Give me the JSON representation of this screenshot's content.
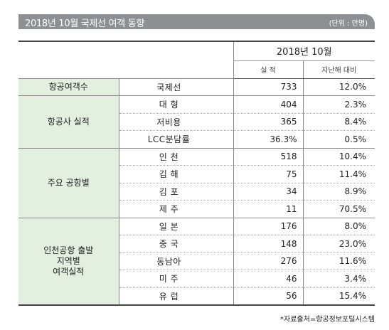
{
  "title": "2018년 10월 국제선 여객 동향",
  "unit": "(단위 : 만명)",
  "header": {
    "period": "2018년  10월",
    "col_actual": "실 적",
    "col_yoy": "지난해 대비"
  },
  "groups": [
    {
      "label": "항공여객수",
      "rows": [
        {
          "name": "국제선",
          "value": "733",
          "pct": "12.0%"
        }
      ]
    },
    {
      "label": "항공사 실적",
      "rows": [
        {
          "name": "대  형",
          "value": "404",
          "pct": "2.3%"
        },
        {
          "name": "저비용",
          "value": "365",
          "pct": "8.4%"
        },
        {
          "name": "LCC분담률",
          "value": "36.3%",
          "pct": "0.5%"
        }
      ]
    },
    {
      "label": "주요  공항별",
      "rows": [
        {
          "name": "인  천",
          "value": "518",
          "pct": "10.4%"
        },
        {
          "name": "김  해",
          "value": "75",
          "pct": "11.4%"
        },
        {
          "name": "김  포",
          "value": "34",
          "pct": "8.9%"
        },
        {
          "name": "제  주",
          "value": "11",
          "pct": "70.5%"
        }
      ]
    },
    {
      "label": "인천공항 출발\n지역별\n여객실적",
      "rows": [
        {
          "name": "일  본",
          "value": "176",
          "pct": "8.0%"
        },
        {
          "name": "중  국",
          "value": "148",
          "pct": "23.0%"
        },
        {
          "name": "동남아",
          "value": "276",
          "pct": "11.6%"
        },
        {
          "name": "미  주",
          "value": "46",
          "pct": "3.4%"
        },
        {
          "name": "유  럽",
          "value": "56",
          "pct": "15.4%"
        }
      ]
    }
  ],
  "source": "*자료출처=항공정보포털시스템"
}
